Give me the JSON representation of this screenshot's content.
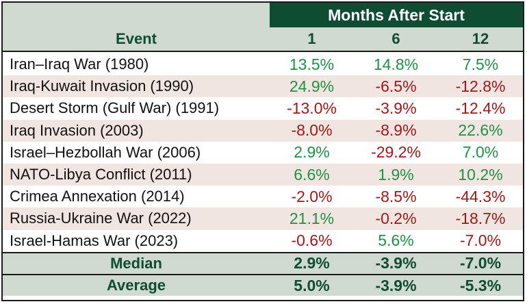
{
  "header": {
    "group_label": "Months After Start",
    "event_label": "Event",
    "col_1": "1",
    "col_6": "6",
    "col_12": "12"
  },
  "rows": [
    {
      "event": "Iran–Iraq War (1980)",
      "m1": "13.5%",
      "m6": "14.8%",
      "m12": "7.5%"
    },
    {
      "event": "Iraq-Kuwait Invasion (1990)",
      "m1": "24.9%",
      "m6": "-6.5%",
      "m12": "-12.8%"
    },
    {
      "event": "Desert Storm (Gulf War) (1991)",
      "m1": "-13.0%",
      "m6": "-3.9%",
      "m12": "-12.4%"
    },
    {
      "event": "Iraq Invasion (2003)",
      "m1": "-8.0%",
      "m6": "-8.9%",
      "m12": "22.6%"
    },
    {
      "event": "Israel–Hezbollah War (2006)",
      "m1": "2.9%",
      "m6": "-29.2%",
      "m12": "7.0%"
    },
    {
      "event": "NATO-Libya Conflict (2011)",
      "m1": "6.6%",
      "m6": "1.9%",
      "m12": "10.2%"
    },
    {
      "event": "Crimea Annexation (2014)",
      "m1": "-2.0%",
      "m6": "-8.5%",
      "m12": "-44.3%"
    },
    {
      "event": "Russia-Ukraine War (2022)",
      "m1": "21.1%",
      "m6": "-0.2%",
      "m12": "-18.7%"
    },
    {
      "event": "Israel-Hamas War (2023)",
      "m1": "-0.6%",
      "m6": "5.6%",
      "m12": "-7.0%"
    }
  ],
  "summary": [
    {
      "label": "Median",
      "m1": "2.9%",
      "m6": "-3.9%",
      "m12": "-7.0%"
    },
    {
      "label": "Average",
      "m1": "5.0%",
      "m6": "-3.9%",
      "m12": "-5.3%"
    }
  ],
  "colors": {
    "header_dark": "#0f4d33",
    "header_light": "#cfd9cf",
    "positive": "#1e9146",
    "negative": "#a01818",
    "row_alt": "#f1e5e2"
  }
}
